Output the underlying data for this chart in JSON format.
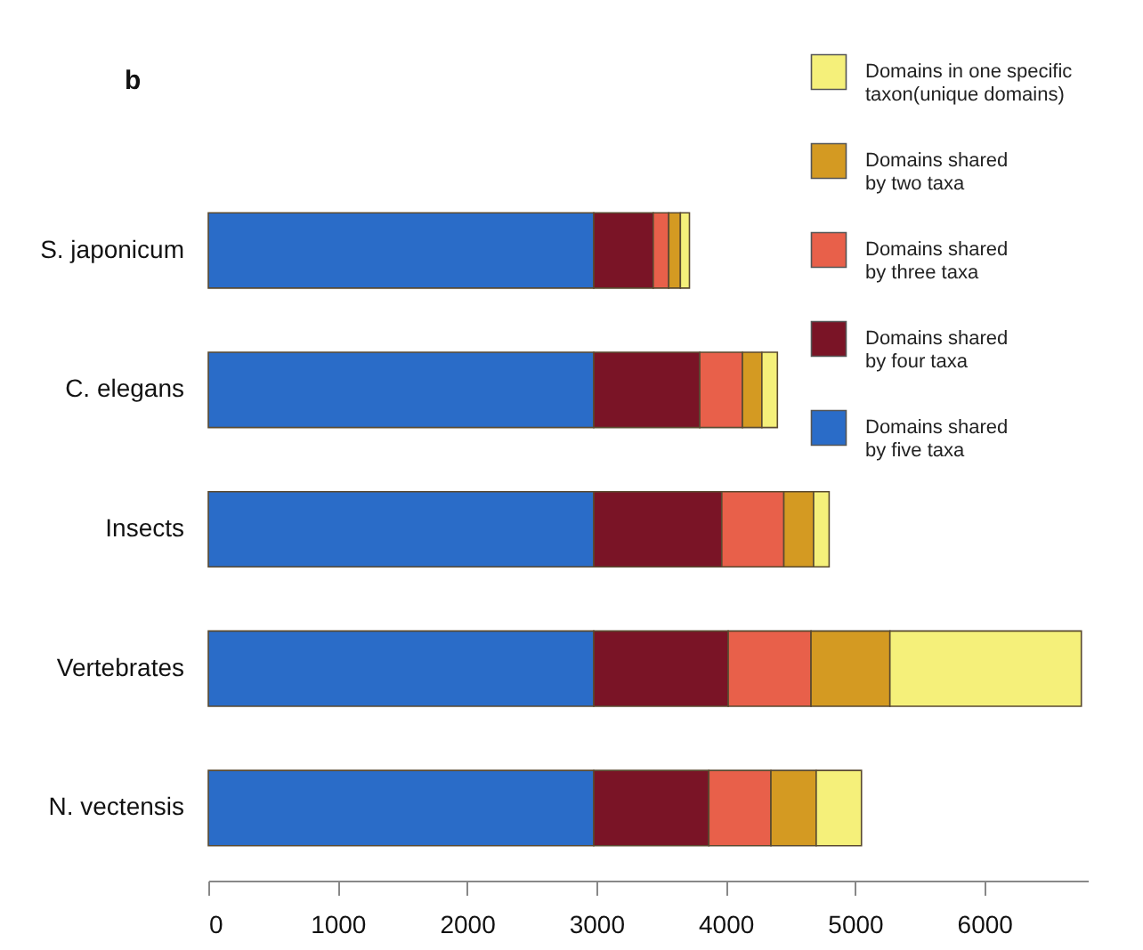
{
  "chart_data": {
    "type": "bar",
    "title": "b",
    "orientation": "horizontal",
    "stacked": true,
    "categories": [
      "S. japonicum",
      "C. elegans",
      "Insects",
      "Vertebrates",
      "N. vectensis"
    ],
    "series": [
      {
        "name": "Domains shared by five taxa",
        "color": "#2a6cc8",
        "values": [
          2980,
          2980,
          2980,
          2980,
          2980
        ]
      },
      {
        "name": "Domains shared by four taxa",
        "color": "#7a1426",
        "values": [
          460,
          820,
          990,
          1040,
          890
        ]
      },
      {
        "name": "Domains shared by three taxa",
        "color": "#e8604a",
        "values": [
          120,
          330,
          480,
          640,
          480
        ]
      },
      {
        "name": "Domains shared by two taxa",
        "color": "#d49a22",
        "values": [
          90,
          150,
          230,
          610,
          350
        ]
      },
      {
        "name": "Domains in one specific taxon(unique domains)",
        "color": "#f5f07a",
        "values": [
          70,
          120,
          120,
          1480,
          350
        ]
      }
    ],
    "xlim": [
      0,
      6800
    ],
    "xticks": [
      0,
      1000,
      2000,
      3000,
      4000,
      5000,
      6000
    ],
    "grid": false,
    "legend": "top right"
  }
}
